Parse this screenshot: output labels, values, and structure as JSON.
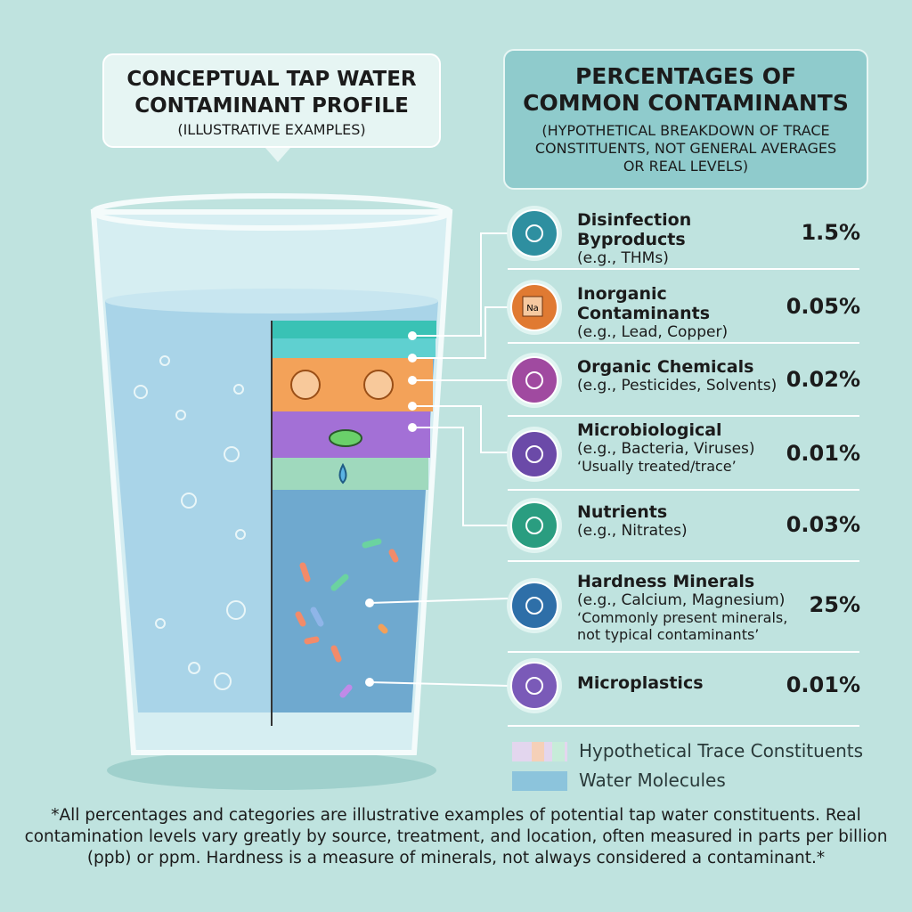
{
  "left_callout": {
    "title": "CONCEPTUAL TAP WATER CONTAMINANT PROFILE",
    "subtitle": "(ILLUSTRATIVE EXAMPLES)"
  },
  "right_header": {
    "title": "PERCENTAGES OF COMMON CONTAMINANTS",
    "subtitle": "(HYPOTHETICAL BREAKDOWN OF TRACE CONSTITUENTS, NOT GENERAL AVERAGES OR REAL LEVELS)"
  },
  "items": [
    {
      "name": "Disinfection Byproducts",
      "detail": "(e.g., THMs)",
      "percent": "1.5%"
    },
    {
      "name": "Inorganic Contaminants",
      "detail": "(e.g., Lead, Copper)",
      "percent": "0.05%",
      "icon_text": "Na"
    },
    {
      "name": "Organic Chemicals",
      "detail": "(e.g., Pesticides, Solvents)",
      "percent": "0.02%"
    },
    {
      "name": "Microbiological",
      "detail": "(e.g., Bacteria, Viruses)",
      "note": "‘Usually treated/trace’",
      "percent": "0.01%"
    },
    {
      "name": "Nutrients",
      "detail": "(e.g., Nitrates)",
      "percent": "0.03%"
    },
    {
      "name": "Hardness Minerals",
      "detail": "(e.g., Calcium, Magnesium)",
      "note": "‘Commonly present minerals, not typical contaminants’",
      "percent": "25%"
    },
    {
      "name": "Microplastics",
      "percent": "0.01%"
    }
  ],
  "legend": [
    "Hypothetical Trace Constituents",
    "Water Molecules"
  ],
  "footnote": "*All percentages and categories are illustrative examples of potential tap water constituents. Real contamination levels vary greatly by source, treatment, and location, often measured in parts per billion (ppb) or ppm. Hardness is a measure of minerals, not always considered a contaminant.*"
}
